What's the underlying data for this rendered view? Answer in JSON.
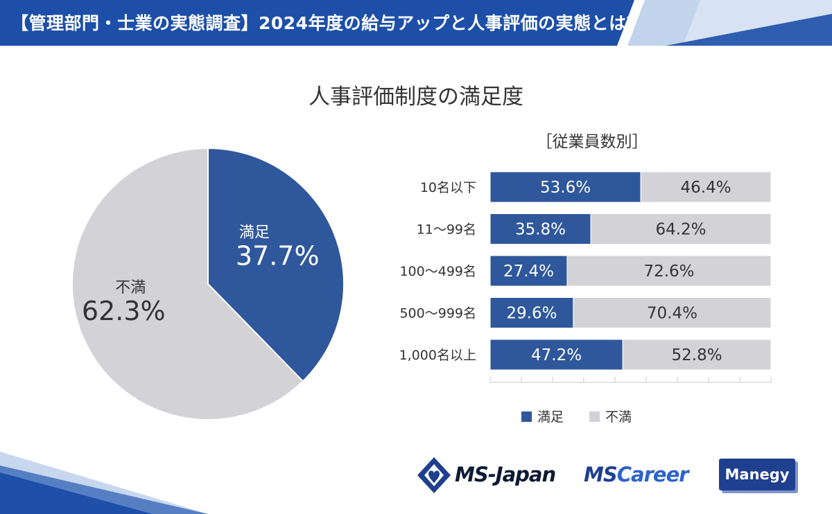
{
  "header": {
    "title": "【管理部門・士業の実態調査】2024年度の給与アップと人事評価の実態とは？"
  },
  "colors": {
    "satisfied": "#2f579b",
    "dissatisfied": "#d3d3d7",
    "header": "#1d4fa8"
  },
  "logos": {
    "ms_japan": "MS-Japan",
    "ms_career_ms": "MS",
    "ms_career_rest": "Career",
    "manegy": "Manegy"
  },
  "chart_data": [
    {
      "type": "pie",
      "title": "人事評価制度の満足度",
      "slices": [
        {
          "label": "満足",
          "value": 37.7,
          "display": "37.7%"
        },
        {
          "label": "不満",
          "value": 62.3,
          "display": "62.3%"
        }
      ]
    },
    {
      "type": "bar",
      "orientation": "horizontal",
      "stacked": true,
      "percent": true,
      "subtitle": "［従業員数別］",
      "categories": [
        "10名以下",
        "11～99名",
        "100～499名",
        "500～999名",
        "1,000名以上"
      ],
      "series": [
        {
          "name": "満足",
          "values": [
            53.6,
            35.8,
            27.4,
            29.6,
            47.2
          ]
        },
        {
          "name": "不満",
          "values": [
            46.4,
            64.2,
            72.6,
            70.4,
            52.8
          ]
        }
      ],
      "xlim": [
        0,
        100
      ],
      "legend": "bottom"
    }
  ]
}
